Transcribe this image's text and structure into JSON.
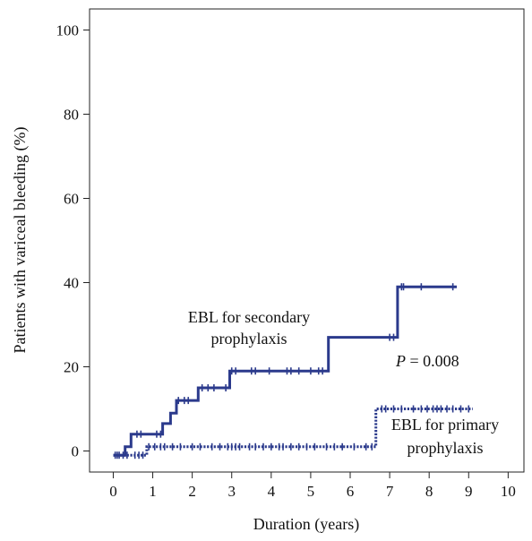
{
  "chart_data": {
    "type": "line",
    "title": "",
    "xlabel": "Duration (years)",
    "ylabel": "Patients with variceal bleeding (%)",
    "xlim": [
      -0.6,
      10.4
    ],
    "ylim": [
      -5,
      105
    ],
    "xticks": [
      0,
      1,
      2,
      3,
      4,
      5,
      6,
      7,
      8,
      9,
      10
    ],
    "yticks": [
      0,
      20,
      40,
      60,
      80,
      100
    ],
    "grid": false,
    "legend": "none",
    "series": [
      {
        "name": "EBL for secondary prophylaxis",
        "style": "solid",
        "color": "#2b3a8c",
        "points": [
          [
            0.0,
            -1
          ],
          [
            0.3,
            -1
          ],
          [
            0.3,
            1
          ],
          [
            0.45,
            1
          ],
          [
            0.45,
            4
          ],
          [
            1.0,
            4
          ],
          [
            1.0,
            4
          ],
          [
            1.25,
            4
          ],
          [
            1.25,
            6.5
          ],
          [
            1.45,
            6.5
          ],
          [
            1.45,
            9
          ],
          [
            1.6,
            9
          ],
          [
            1.6,
            12
          ],
          [
            2.15,
            12
          ],
          [
            2.15,
            15
          ],
          [
            2.95,
            15
          ],
          [
            2.95,
            19
          ],
          [
            5.45,
            19
          ],
          [
            5.45,
            27
          ],
          [
            7.2,
            27
          ],
          [
            7.2,
            39
          ],
          [
            8.7,
            39
          ]
        ],
        "censored": [
          0.05,
          0.15,
          0.6,
          0.7,
          1.1,
          1.2,
          1.65,
          1.8,
          1.9,
          2.25,
          2.4,
          2.55,
          2.85,
          3.0,
          3.1,
          3.5,
          3.6,
          3.95,
          4.4,
          4.5,
          4.7,
          5.0,
          5.2,
          5.3,
          7.0,
          7.1,
          7.3,
          7.35,
          7.8,
          8.6
        ]
      },
      {
        "name": "EBL for primary prophylaxis",
        "style": "dotted",
        "color": "#2b3a8c",
        "points": [
          [
            0.0,
            -1
          ],
          [
            0.85,
            -1
          ],
          [
            0.85,
            1
          ],
          [
            6.65,
            1
          ],
          [
            6.65,
            10
          ],
          [
            9.1,
            10
          ]
        ],
        "censored": [
          0.1,
          0.25,
          0.35,
          0.55,
          0.65,
          0.75,
          0.9,
          1.05,
          1.2,
          1.3,
          1.5,
          1.7,
          2.0,
          2.2,
          2.5,
          2.7,
          2.9,
          3.0,
          3.1,
          3.2,
          3.45,
          3.6,
          3.8,
          4.0,
          4.2,
          4.3,
          4.5,
          4.7,
          4.9,
          5.1,
          5.4,
          5.6,
          5.8,
          6.1,
          6.4,
          6.55,
          6.8,
          6.9,
          7.1,
          7.3,
          7.6,
          7.8,
          7.95,
          8.1,
          8.2,
          8.3,
          8.45,
          8.6,
          8.8,
          9.0
        ]
      }
    ],
    "annotations": [
      {
        "id": "secondary-label",
        "lines": [
          "EBL for secondary",
          "prophylaxis"
        ]
      },
      {
        "id": "primary-label",
        "lines": [
          "EBL for primary",
          "prophylaxis"
        ]
      },
      {
        "id": "p-value",
        "italic": "P",
        "text": " = 0.008"
      }
    ]
  }
}
